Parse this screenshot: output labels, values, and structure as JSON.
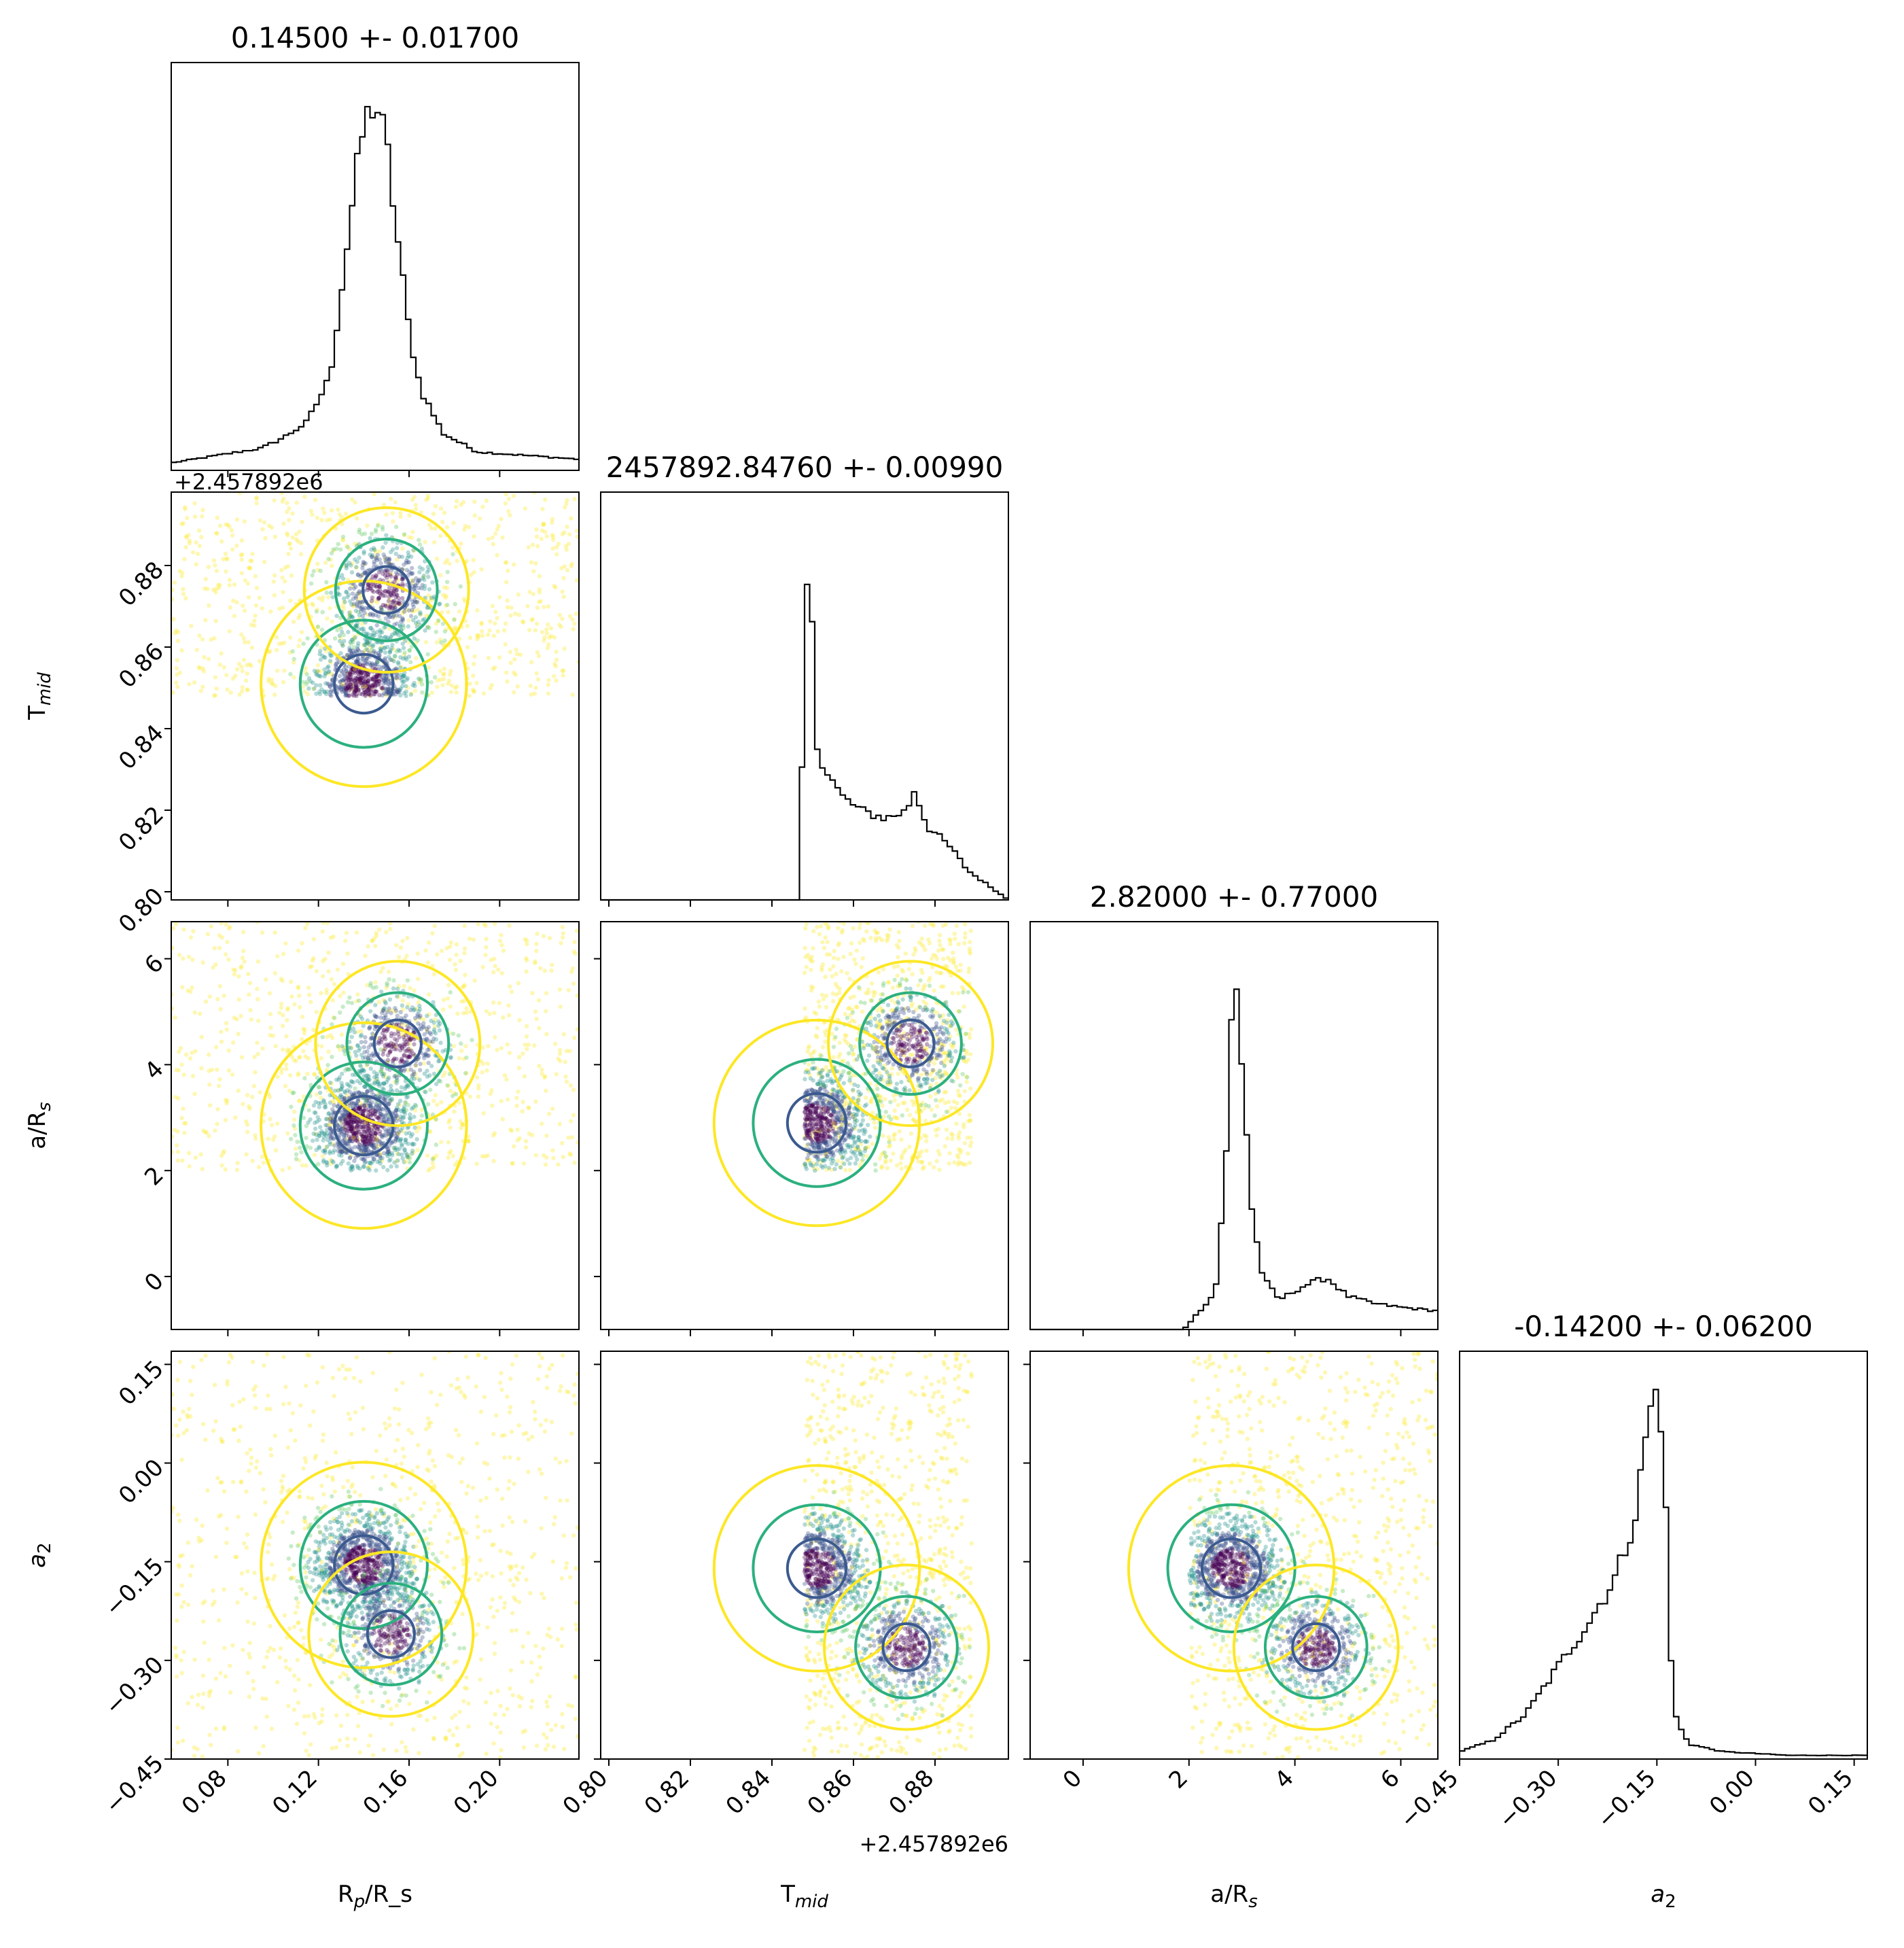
{
  "chart_data": {
    "type": "corner",
    "parameters": [
      {
        "key": "rp",
        "label": "R_p/R_s",
        "title": "0.14500 +- 0.01700",
        "lim": [
          0.055,
          0.235
        ],
        "ticks": [
          0.08,
          0.12,
          0.16,
          0.2
        ],
        "tick_labels": [
          "0.08",
          "0.12",
          "0.16",
          "0.20"
        ]
      },
      {
        "key": "tmid",
        "label": "T_mid",
        "title": "2457892.84760 +- 0.00990",
        "lim": [
          0.798,
          0.898
        ],
        "ticks": [
          0.8,
          0.82,
          0.84,
          0.86,
          0.88
        ],
        "tick_labels": [
          "0.80",
          "0.82",
          "0.84",
          "0.86",
          "0.88"
        ],
        "offset_label": "+2.457892e6"
      },
      {
        "key": "ars",
        "label": "a/R_s",
        "title": "2.82000 +- 0.77000",
        "lim": [
          -1.0,
          6.7
        ],
        "ticks": [
          0,
          2,
          4,
          6
        ],
        "tick_labels": [
          "0",
          "2",
          "4",
          "6"
        ]
      },
      {
        "key": "a2",
        "label": "a_2",
        "title": "-0.14200 +- 0.06200",
        "lim": [
          -0.45,
          0.17
        ],
        "ticks": [
          -0.45,
          -0.3,
          -0.15,
          0.0,
          0.15
        ],
        "tick_labels": [
          "−0.45",
          "−0.30",
          "−0.15",
          "0.00",
          "0.15"
        ]
      }
    ],
    "histograms": [
      {
        "param": "rp",
        "bins_center": [
          0.055,
          0.075,
          0.095,
          0.105,
          0.115,
          0.125,
          0.13,
          0.135,
          0.14,
          0.145,
          0.15,
          0.155,
          0.16,
          0.165,
          0.175,
          0.19,
          0.235
        ],
        "density": [
          0.02,
          0.04,
          0.06,
          0.09,
          0.13,
          0.25,
          0.48,
          0.72,
          0.93,
          1.0,
          0.88,
          0.62,
          0.38,
          0.22,
          0.1,
          0.05,
          0.03
        ]
      },
      {
        "param": "tmid",
        "bins_center": [
          0.798,
          0.8465,
          0.848,
          0.849,
          0.85,
          0.851,
          0.853,
          0.857,
          0.862,
          0.868,
          0.873,
          0.875,
          0.878,
          0.884,
          0.888,
          0.898
        ],
        "density": [
          0.0,
          0.0,
          0.58,
          1.0,
          0.68,
          0.42,
          0.36,
          0.28,
          0.24,
          0.22,
          0.24,
          0.3,
          0.2,
          0.14,
          0.08,
          0.0
        ]
      },
      {
        "param": "ars",
        "bins_center": [
          -1.0,
          1.9,
          2.2,
          2.5,
          2.7,
          2.85,
          3.0,
          3.2,
          3.4,
          3.7,
          4.2,
          4.6,
          5.0,
          5.5,
          6.0,
          6.7
        ],
        "density": [
          0.0,
          0.0,
          0.05,
          0.1,
          0.45,
          1.0,
          0.72,
          0.3,
          0.14,
          0.08,
          0.12,
          0.14,
          0.09,
          0.07,
          0.06,
          0.05
        ]
      },
      {
        "param": "a2",
        "bins_center": [
          -0.45,
          -0.4,
          -0.35,
          -0.3,
          -0.25,
          -0.21,
          -0.18,
          -0.165,
          -0.15,
          -0.14,
          -0.13,
          -0.12,
          -0.1,
          -0.05,
          0.05,
          0.17
        ],
        "density": [
          0.02,
          0.05,
          0.12,
          0.25,
          0.38,
          0.5,
          0.68,
          0.9,
          1.0,
          0.88,
          0.3,
          0.1,
          0.04,
          0.02,
          0.01,
          0.01
        ]
      }
    ],
    "pairs": [
      {
        "x": "rp",
        "y": "tmid",
        "modes": [
          {
            "x": 0.14,
            "y": 0.851,
            "weight": 0.65
          },
          {
            "x": 0.15,
            "y": 0.874,
            "weight": 0.35
          }
        ],
        "support": {
          "x": [
            0.055,
            0.235
          ],
          "y": [
            0.848,
            0.898
          ]
        }
      },
      {
        "x": "rp",
        "y": "ars",
        "modes": [
          {
            "x": 0.14,
            "y": 2.85,
            "weight": 0.7
          },
          {
            "x": 0.155,
            "y": 4.4,
            "weight": 0.3
          }
        ],
        "support": {
          "x": [
            0.055,
            0.235
          ],
          "y": [
            2.0,
            6.7
          ]
        }
      },
      {
        "x": "tmid",
        "y": "ars",
        "modes": [
          {
            "x": 0.851,
            "y": 2.9,
            "weight": 0.7
          },
          {
            "x": 0.874,
            "y": 4.4,
            "weight": 0.3
          }
        ],
        "support": {
          "x": [
            0.848,
            0.889
          ],
          "y": [
            2.0,
            6.7
          ]
        }
      },
      {
        "x": "rp",
        "y": "a2",
        "modes": [
          {
            "x": 0.14,
            "y": -0.155,
            "weight": 0.7
          },
          {
            "x": 0.152,
            "y": -0.26,
            "weight": 0.3
          }
        ],
        "support": {
          "x": [
            0.055,
            0.235
          ],
          "y": [
            -0.45,
            0.17
          ]
        }
      },
      {
        "x": "tmid",
        "y": "a2",
        "modes": [
          {
            "x": 0.851,
            "y": -0.16,
            "weight": 0.65
          },
          {
            "x": 0.873,
            "y": -0.28,
            "weight": 0.35
          }
        ],
        "support": {
          "x": [
            0.848,
            0.889
          ],
          "y": [
            -0.45,
            0.17
          ]
        }
      },
      {
        "x": "ars",
        "y": "a2",
        "modes": [
          {
            "x": 2.8,
            "y": -0.16,
            "weight": 0.65
          },
          {
            "x": 4.4,
            "y": -0.28,
            "weight": 0.35
          }
        ],
        "support": {
          "x": [
            2.0,
            6.7
          ],
          "y": [
            -0.45,
            0.17
          ]
        }
      }
    ],
    "contour_colors": [
      "#3b5a8f",
      "#2bb07f",
      "#fde725"
    ],
    "point_colors": [
      "#440154",
      "#3b528b",
      "#21918c",
      "#5ec962",
      "#fde725"
    ],
    "grid": false,
    "legend": "none"
  }
}
